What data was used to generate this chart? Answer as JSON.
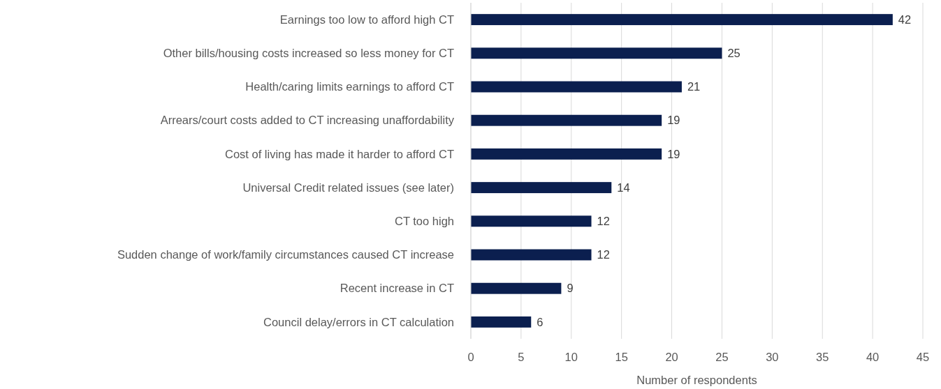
{
  "chart_data": {
    "type": "bar",
    "orientation": "horizontal",
    "xlabel": "Number of respondents",
    "categories": [
      "Earnings too low to afford high CT",
      "Other bills/housing costs increased so less money for CT",
      "Health/caring limits earnings to afford CT",
      "Arrears/court costs added to CT increasing unaffordability",
      "Cost of living has made it harder to afford CT",
      "Universal Credit related issues (see later)",
      "CT too high",
      "Sudden change of work/family circumstances caused CT increase",
      "Recent increase in CT",
      "Council delay/errors in CT calculation"
    ],
    "values": [
      42,
      25,
      21,
      19,
      19,
      14,
      12,
      12,
      9,
      6
    ],
    "color": "#0b1f4f",
    "xlim": [
      0,
      45
    ],
    "xticks": [
      0,
      5,
      10,
      15,
      20,
      25,
      30,
      35,
      40,
      45
    ],
    "grid": "x",
    "data_labels": true
  }
}
